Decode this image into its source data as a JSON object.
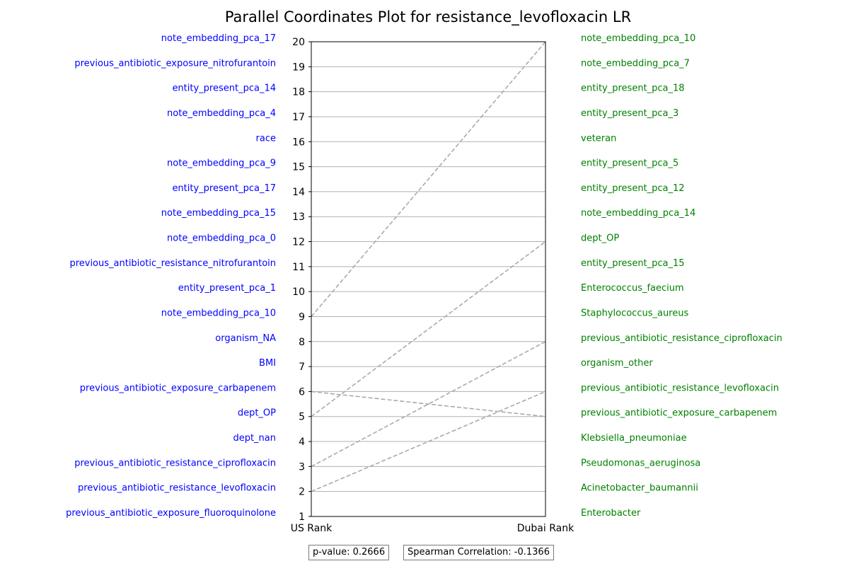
{
  "chart_data": {
    "type": "parallel_coordinates",
    "title": "Parallel Coordinates Plot for resistance_levofloxacin LR",
    "axes": [
      "US Rank",
      "Dubai Rank"
    ],
    "ylim": [
      1,
      20
    ],
    "yticks": [
      "1",
      "2",
      "3",
      "4",
      "5",
      "6",
      "7",
      "8",
      "9",
      "10",
      "11",
      "12",
      "13",
      "14",
      "15",
      "16",
      "17",
      "18",
      "19",
      "20"
    ],
    "grid": true,
    "us_labels": [
      {
        "rank": 20,
        "label": "note_embedding_pca_17"
      },
      {
        "rank": 19,
        "label": "previous_antibiotic_exposure_nitrofurantoin"
      },
      {
        "rank": 18,
        "label": "entity_present_pca_14"
      },
      {
        "rank": 17,
        "label": "note_embedding_pca_4"
      },
      {
        "rank": 16,
        "label": "race"
      },
      {
        "rank": 15,
        "label": "note_embedding_pca_9"
      },
      {
        "rank": 14,
        "label": "entity_present_pca_17"
      },
      {
        "rank": 13,
        "label": "note_embedding_pca_15"
      },
      {
        "rank": 12,
        "label": "note_embedding_pca_0"
      },
      {
        "rank": 11,
        "label": "previous_antibiotic_resistance_nitrofurantoin"
      },
      {
        "rank": 10,
        "label": "entity_present_pca_1"
      },
      {
        "rank": 9,
        "label": "note_embedding_pca_10"
      },
      {
        "rank": 8,
        "label": "organism_NA"
      },
      {
        "rank": 7,
        "label": "BMI"
      },
      {
        "rank": 6,
        "label": "previous_antibiotic_exposure_carbapenem"
      },
      {
        "rank": 5,
        "label": "dept_OP"
      },
      {
        "rank": 4,
        "label": "dept_nan"
      },
      {
        "rank": 3,
        "label": "previous_antibiotic_resistance_ciprofloxacin"
      },
      {
        "rank": 2,
        "label": "previous_antibiotic_resistance_levofloxacin"
      },
      {
        "rank": 1,
        "label": "previous_antibiotic_exposure_fluoroquinolone"
      }
    ],
    "dubai_labels": [
      {
        "rank": 20,
        "label": "note_embedding_pca_10"
      },
      {
        "rank": 19,
        "label": "note_embedding_pca_7"
      },
      {
        "rank": 18,
        "label": "entity_present_pca_18"
      },
      {
        "rank": 17,
        "label": "entity_present_pca_3"
      },
      {
        "rank": 16,
        "label": "veteran"
      },
      {
        "rank": 15,
        "label": "entity_present_pca_5"
      },
      {
        "rank": 14,
        "label": "entity_present_pca_12"
      },
      {
        "rank": 13,
        "label": "note_embedding_pca_14"
      },
      {
        "rank": 12,
        "label": "dept_OP"
      },
      {
        "rank": 11,
        "label": "entity_present_pca_15"
      },
      {
        "rank": 10,
        "label": "Enterococcus_faecium"
      },
      {
        "rank": 9,
        "label": "Staphylococcus_aureus"
      },
      {
        "rank": 8,
        "label": "previous_antibiotic_resistance_ciprofloxacin"
      },
      {
        "rank": 7,
        "label": "organism_other"
      },
      {
        "rank": 6,
        "label": "previous_antibiotic_resistance_levofloxacin"
      },
      {
        "rank": 5,
        "label": "previous_antibiotic_exposure_carbapenem"
      },
      {
        "rank": 4,
        "label": "Klebsiella_pneumoniae"
      },
      {
        "rank": 3,
        "label": "Pseudomonas_aeruginosa"
      },
      {
        "rank": 2,
        "label": "Acinetobacter_baumannii"
      },
      {
        "rank": 1,
        "label": "Enterobacter"
      }
    ],
    "connections": [
      {
        "us_rank": 9,
        "dubai_rank": 20
      },
      {
        "us_rank": 5,
        "dubai_rank": 12
      },
      {
        "us_rank": 3,
        "dubai_rank": 8
      },
      {
        "us_rank": 2,
        "dubai_rank": 6
      },
      {
        "us_rank": 6,
        "dubai_rank": 5
      }
    ],
    "colors": {
      "us": "#0000ff",
      "dubai": "#008000",
      "line": "#aaaaaa",
      "grid": "#b0b0b0"
    },
    "stats": {
      "p_value": "p-value: 0.2666",
      "spearman": "Spearman Correlation: -0.1366"
    }
  }
}
